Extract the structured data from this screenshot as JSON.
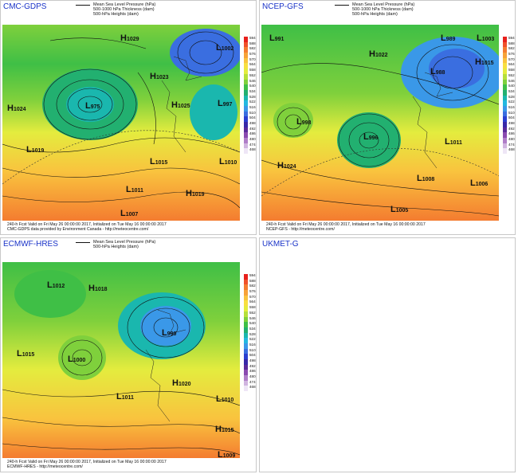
{
  "panels": [
    {
      "title": "CMC-GDPS",
      "legend": [
        "Mean Sea Level Pressure (hPa)",
        "500-1000 hPa Thickness (dam)",
        "500-hPa Heights (dam)"
      ],
      "caption": [
        "240-h Fcst Valid on Fri May 26 00:00:00 2017, Initialized on Tue May 16 00:00:00 2017",
        "CMC-GDPS data provided by Environment Canada - http://meteocentre.com/"
      ],
      "pressure_labels": [
        "H1029",
        "H1023",
        "H1025",
        "H1024",
        "L975",
        "L1002",
        "L997",
        "L1019",
        "L1015",
        "L1011",
        "L1010",
        "H1019",
        "L1007"
      ]
    },
    {
      "title": "NCEP-GFS",
      "legend": [
        "Mean Sea Level Pressure (hPa)",
        "500-1000 hPa Thickness (dam)",
        "500-hPa Heights (dam)"
      ],
      "caption": [
        "240-h Fcst Valid on Fri May 26 00:00:00 2017, Initialized on Tue May 16 00:00:00 2017",
        "NCEP-GFS - http://meteocentre.com/"
      ],
      "pressure_labels": [
        "L991",
        "H1022",
        "L989",
        "L1003",
        "H1015",
        "L988",
        "L998",
        "L996",
        "L1011",
        "H1024",
        "L1008",
        "L1006",
        "L1005"
      ]
    },
    {
      "title": "ECMWF-HRES",
      "legend": [
        "Mean Sea Level Pressure (hPa)",
        "500-hPa Heights (dam)"
      ],
      "caption": [
        "240-h Fcst Valid on Fri May 26 00:00:00 2017, Initialized on Tue May 16 00:00:00 2017",
        "ECMWF-HRES - http://meteocentre.com/"
      ],
      "pressure_labels": [
        "L1012",
        "H1018",
        "L990",
        "L1015",
        "L1000",
        "L1011",
        "H1020",
        "L1010",
        "H1015",
        "L1009"
      ]
    },
    {
      "title": "UKMET-G",
      "legend": [],
      "caption": [],
      "pressure_labels": []
    }
  ],
  "scale": {
    "labels": [
      "594",
      "588",
      "582",
      "576",
      "570",
      "564",
      "558",
      "552",
      "546",
      "540",
      "534",
      "528",
      "522",
      "516",
      "510",
      "504",
      "498",
      "492",
      "486",
      "480",
      "474",
      "468"
    ],
    "colors": [
      "#e8201c",
      "#f0502a",
      "#f47c30",
      "#f7a238",
      "#f9c33e",
      "#f8df40",
      "#e4ec3e",
      "#b6e03a",
      "#7fd03c",
      "#3fbf46",
      "#22b070",
      "#1ab7ae",
      "#23b8e0",
      "#3a98e8",
      "#3a6ee0",
      "#2a3fd0",
      "#3828a8",
      "#5a2a9a",
      "#8a4ab0",
      "#b07ec8",
      "#d0b4e0",
      "#eee6f6"
    ]
  }
}
